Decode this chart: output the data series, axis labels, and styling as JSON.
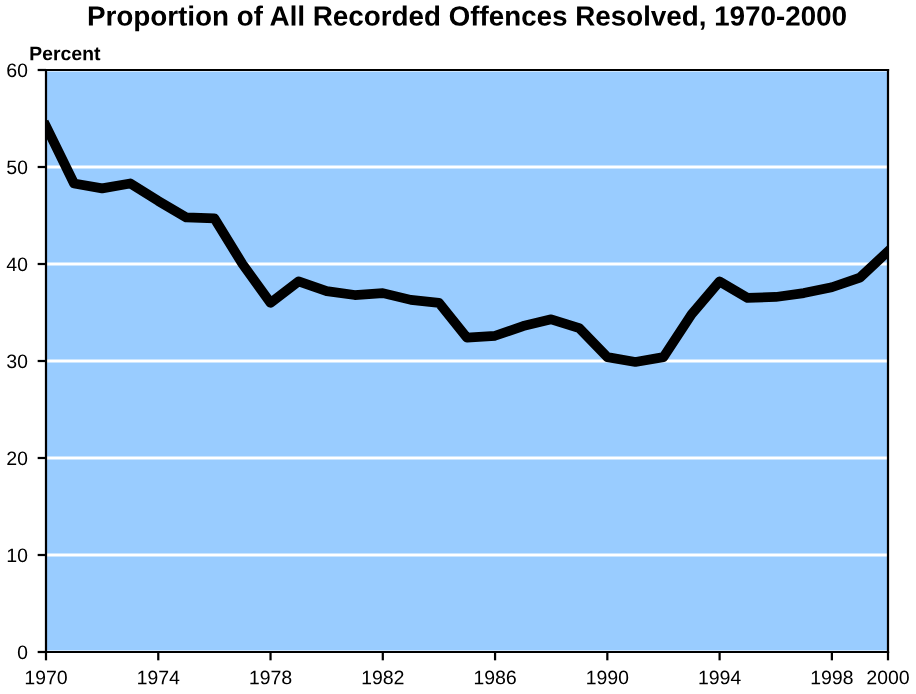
{
  "chart_data": {
    "type": "line",
    "title": "Proportion of All Recorded Offences Resolved, 1970-2000",
    "ylabel": "Percent",
    "x": [
      1970,
      1971,
      1972,
      1973,
      1974,
      1975,
      1976,
      1977,
      1978,
      1979,
      1980,
      1981,
      1982,
      1983,
      1984,
      1985,
      1986,
      1987,
      1988,
      1989,
      1990,
      1991,
      1992,
      1993,
      1994,
      1995,
      1996,
      1997,
      1998,
      1999,
      2000
    ],
    "series": [
      {
        "color": "#000000",
        "values": [
          54.2,
          48.3,
          47.8,
          48.3,
          46.5,
          44.8,
          44.7,
          40.0,
          36.0,
          38.2,
          37.2,
          36.8,
          37.0,
          36.3,
          36.0,
          32.4,
          32.6,
          33.6,
          34.3,
          33.4,
          30.4,
          29.9,
          30.4,
          34.8,
          38.2,
          36.5,
          36.6,
          37.0,
          37.6,
          38.6,
          41.3
        ]
      }
    ],
    "xlim": [
      1970,
      2000
    ],
    "xticks": [
      1970,
      1974,
      1978,
      1982,
      1986,
      1990,
      1994,
      1998,
      2000
    ],
    "ylim": [
      0,
      60
    ],
    "yticks": [
      0,
      10,
      20,
      30,
      40,
      50,
      60
    ],
    "grid": "y",
    "marker": "none",
    "line_style": "solid"
  }
}
